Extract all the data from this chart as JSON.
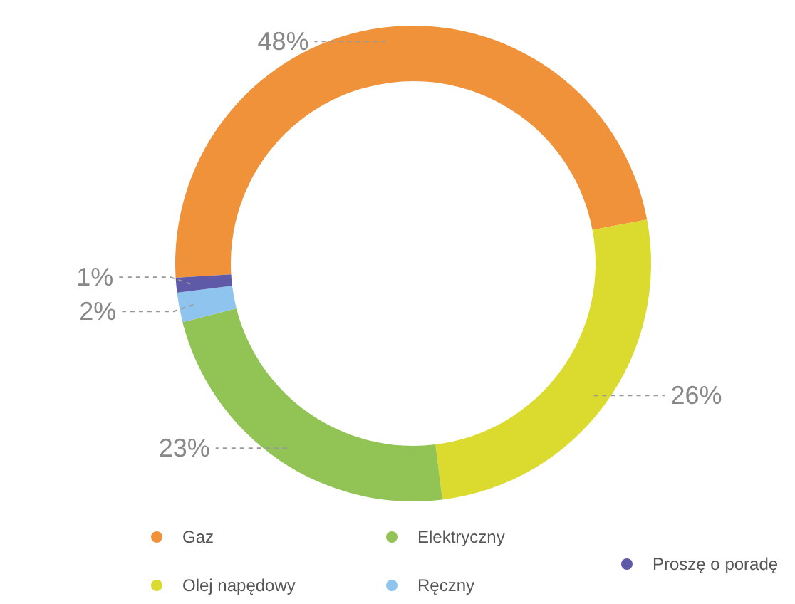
{
  "chart_data": {
    "type": "donut",
    "categories": [
      "Gaz",
      "Olej napędowy",
      "Elektryczny",
      "Ręczny",
      "Proszę o poradę"
    ],
    "values": [
      48,
      26,
      23,
      2,
      1
    ],
    "colors": [
      "#f0923a",
      "#dadb2e",
      "#92c355",
      "#8ec4ee",
      "#5f5aa8"
    ],
    "value_labels": [
      "48%",
      "26%",
      "23%",
      "2%",
      "1%"
    ],
    "legend": "bottom"
  }
}
